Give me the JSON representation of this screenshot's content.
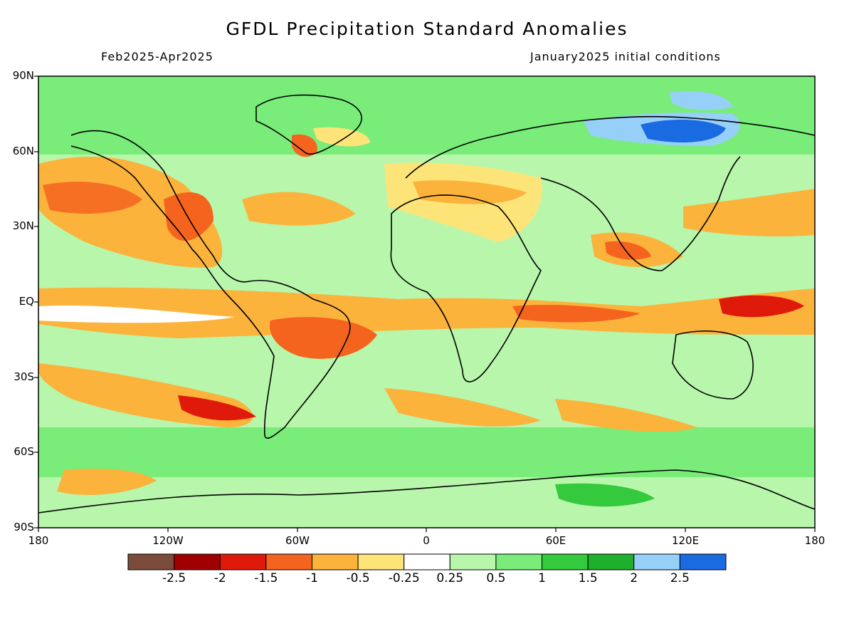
{
  "title": "GFDL Precipitation Standard Anomalies",
  "period": "Feb2025-Apr2025",
  "initial_conditions": "January2025 initial conditions",
  "map": {
    "lat_labels": [
      "90N",
      "60N",
      "30N",
      "EQ",
      "30S",
      "60S",
      "90S"
    ],
    "lon_labels": [
      "180",
      "120W",
      "60W",
      "0",
      "60E",
      "120E",
      "180"
    ]
  },
  "colorbar": {
    "labels": [
      "-2.5",
      "-2",
      "-1.5",
      "-1",
      "-0.5",
      "-0.25",
      "0.25",
      "0.5",
      "1",
      "1.5",
      "2",
      "2.5"
    ],
    "colors": [
      "#7a4a3a",
      "#a00000",
      "#e01a0a",
      "#f5641e",
      "#fbb33c",
      "#fde479",
      "#ffffff",
      "#b8f6ab",
      "#79ec79",
      "#35c93d",
      "#1eaf2c",
      "#96d0f8",
      "#1a6ae2"
    ]
  },
  "colors": {
    "ocean_base": "#ffffff",
    "coastline": "#000000"
  }
}
